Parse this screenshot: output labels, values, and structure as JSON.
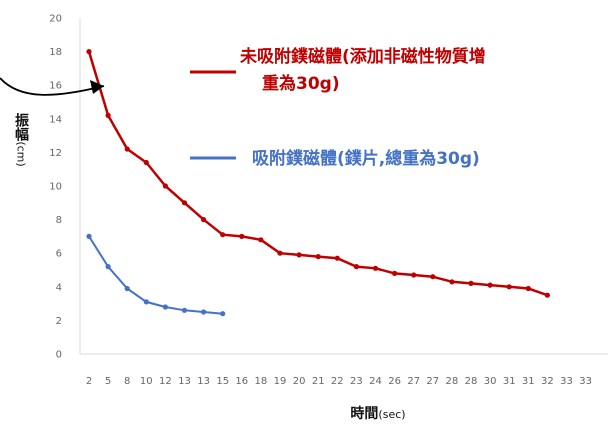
{
  "chart_data": {
    "type": "line",
    "ylabel": "振幅",
    "ylabel_unit": "(cm)",
    "xlabel": "時間",
    "xlabel_unit": "(sec)",
    "ylim": [
      0,
      20
    ],
    "yticks": [
      0,
      2,
      4,
      6,
      8,
      10,
      12,
      14,
      16,
      18,
      20
    ],
    "x_tick_labels": [
      "2",
      "5",
      "8",
      "10",
      "12",
      "13",
      "13",
      "15",
      "16",
      "18",
      "19",
      "20",
      "21",
      "22",
      "23",
      "24",
      "26",
      "27",
      "27",
      "28",
      "28",
      "30",
      "31",
      "31",
      "32",
      "33",
      "33"
    ],
    "grid": false,
    "legend_position": "top-right",
    "series": [
      {
        "name": "未吸附鏷磁體(添加非磁性物質增重為30g)",
        "color": "#c00000",
        "values": [
          18.0,
          14.2,
          12.2,
          11.4,
          10.0,
          9.0,
          8.0,
          7.1,
          7.0,
          6.8,
          6.0,
          5.9,
          5.8,
          5.7,
          5.2,
          5.1,
          4.8,
          4.7,
          4.6,
          4.3,
          4.2,
          4.1,
          4.0,
          3.9,
          3.5
        ]
      },
      {
        "name": "吸附鏷磁體(鏷片,總重為30g)",
        "color": "#4472c4",
        "values": [
          7.0,
          5.2,
          3.9,
          3.1,
          2.8,
          2.6,
          2.5,
          2.4
        ]
      }
    ]
  },
  "legend": {
    "red_line1": "未吸附鏷磁體(添加非磁性物質增",
    "red_line2": "重為30g)",
    "blue_line1": "吸附鏷磁體(鏷片,總重為30g)"
  }
}
